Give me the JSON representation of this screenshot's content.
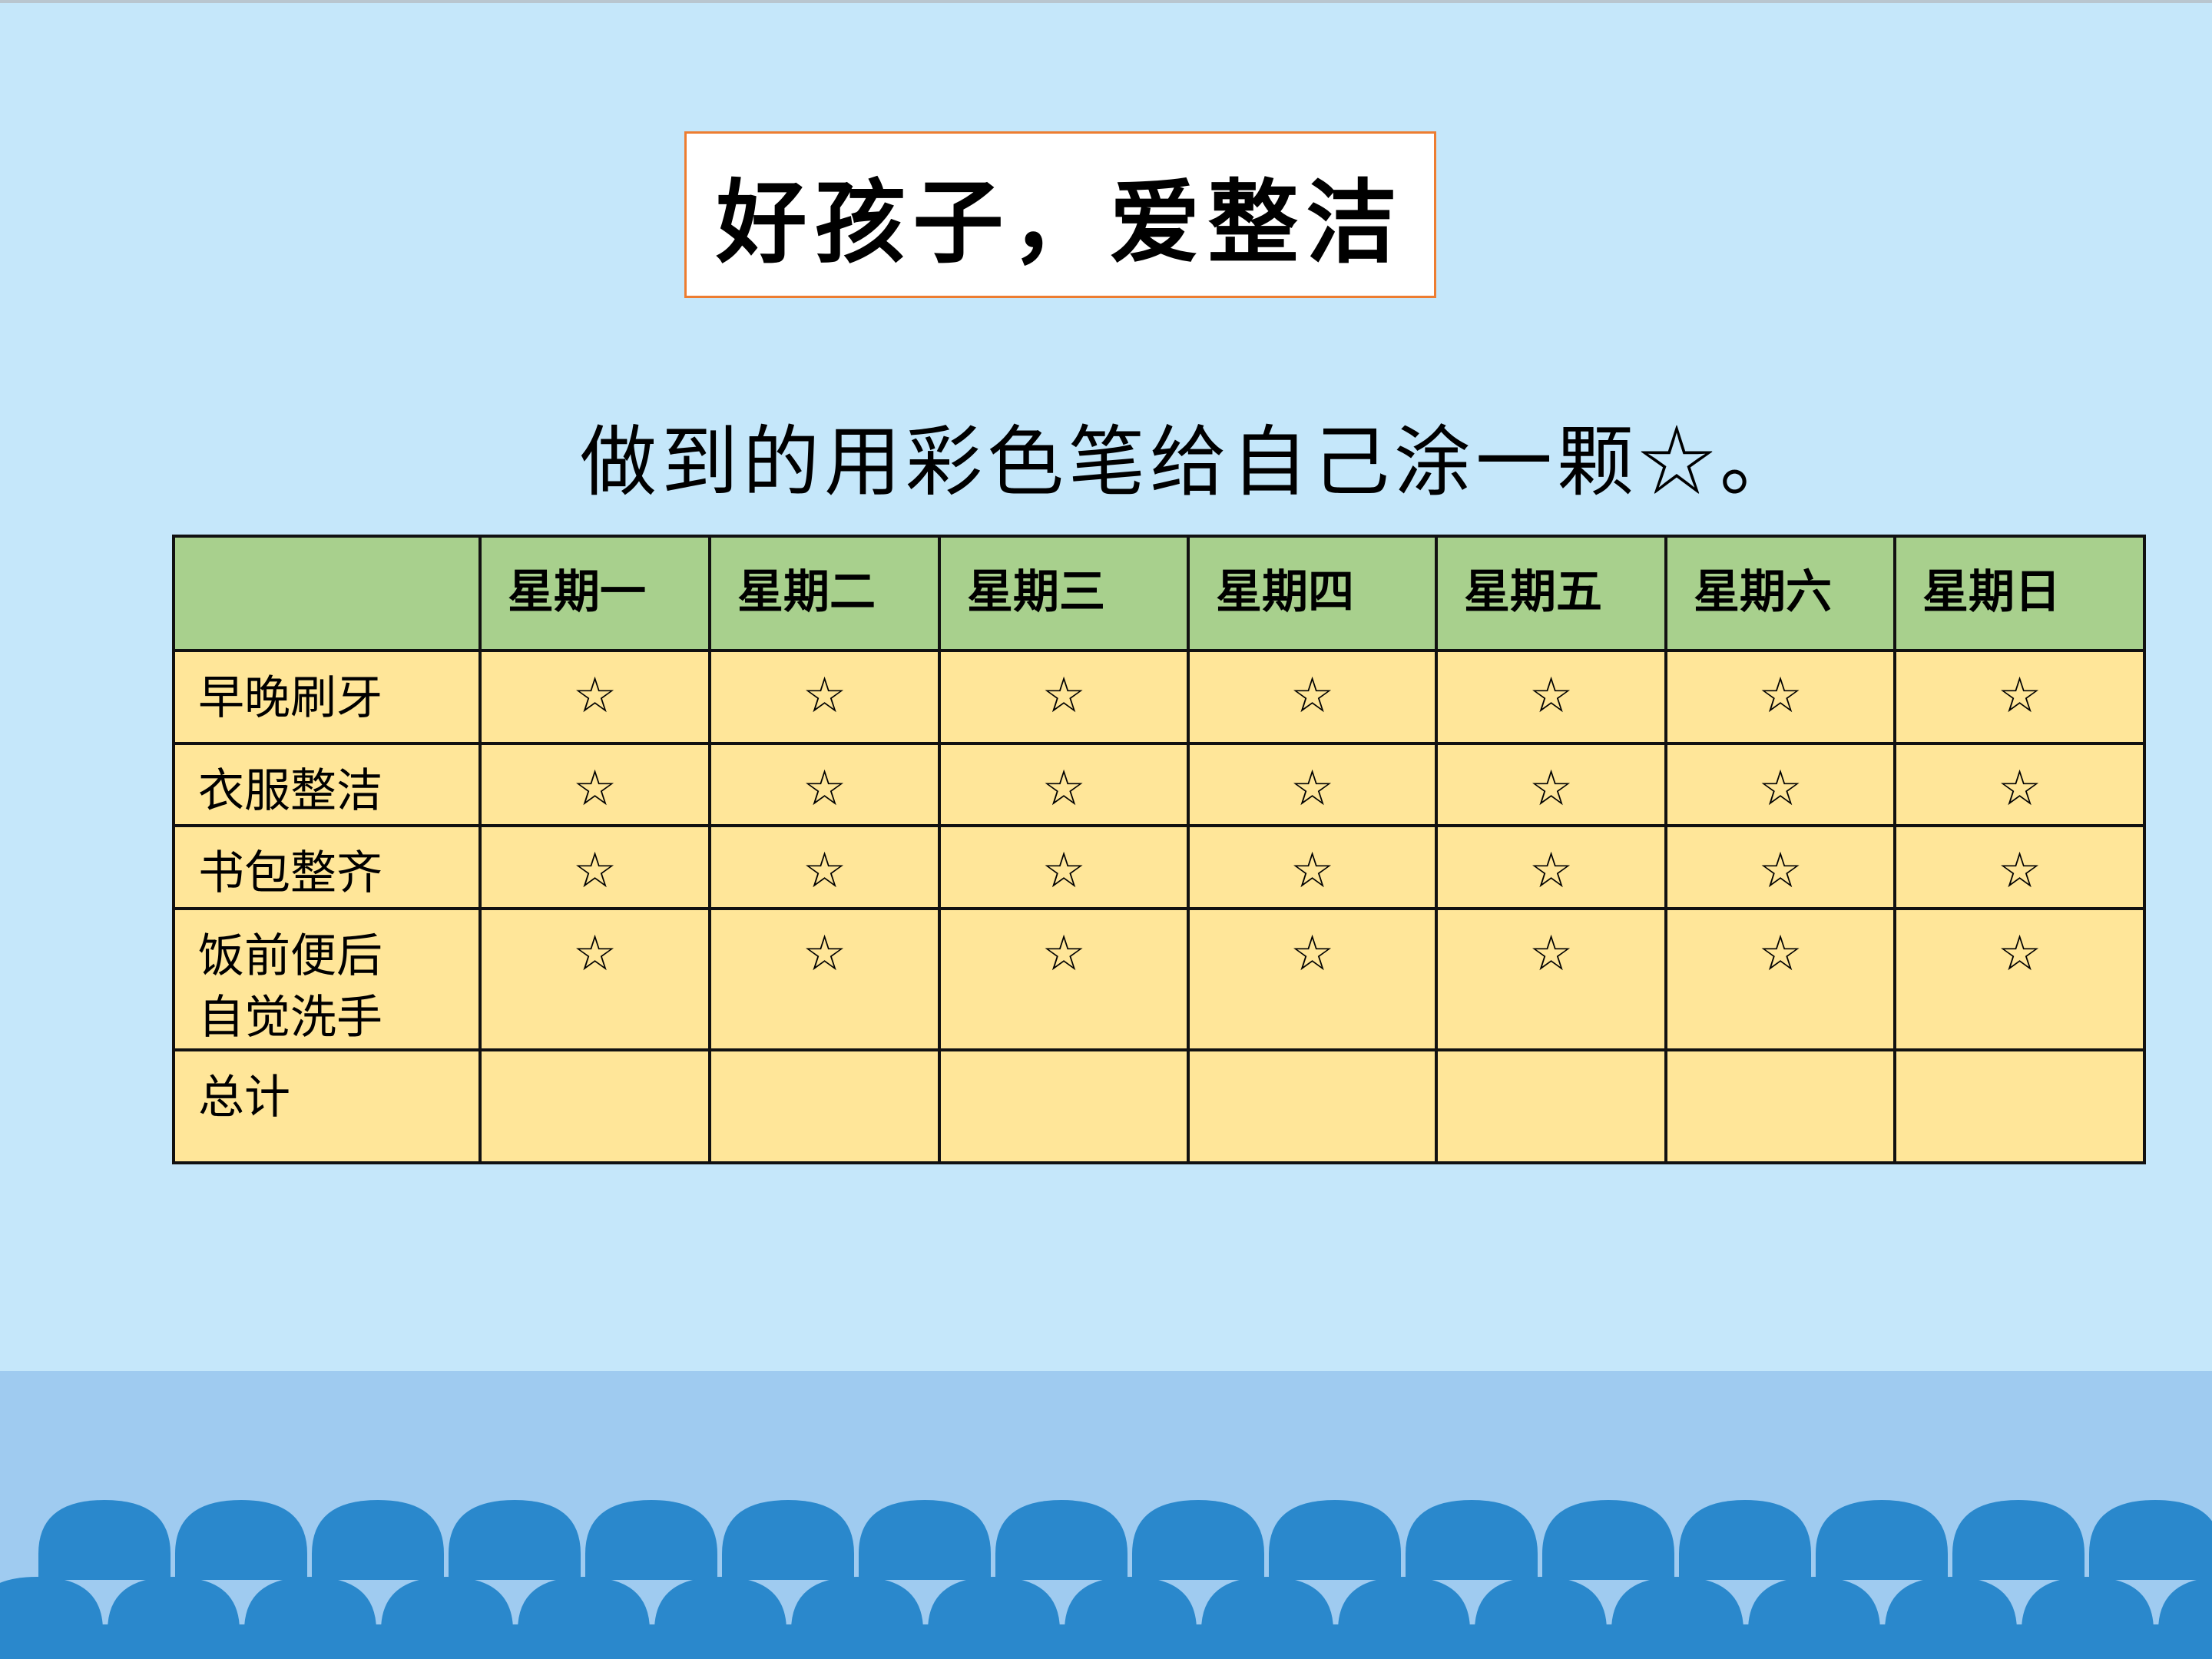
{
  "title": "好孩子，爱整洁",
  "instruction": "做到的用彩色笔给自己涂一颗☆。",
  "table": {
    "corner": "",
    "days": [
      "星期一",
      "星期二",
      "星期三",
      "星期四",
      "星期五",
      "星期六",
      "星期日"
    ],
    "rows": [
      {
        "label": "早晚刷牙",
        "cells": [
          "☆",
          "☆",
          "☆",
          "☆",
          "☆",
          "☆",
          "☆"
        ]
      },
      {
        "label": "衣服整洁",
        "cells": [
          "☆",
          "☆",
          "☆",
          "☆",
          "☆",
          "☆",
          "☆"
        ]
      },
      {
        "label": "书包整齐",
        "cells": [
          "☆",
          "☆",
          "☆",
          "☆",
          "☆",
          "☆",
          "☆"
        ]
      },
      {
        "label": "饭前便后\n自觉洗手",
        "cells": [
          "☆",
          "☆",
          "☆",
          "☆",
          "☆",
          "☆",
          "☆"
        ]
      },
      {
        "label": "总计",
        "cells": [
          "",
          "",
          "",
          "",
          "",
          "",
          ""
        ]
      }
    ]
  },
  "colors": {
    "background": "#c5e7fa",
    "band": "#9fcbf0",
    "waves": "#2a88cc",
    "header": "#a8d08d",
    "cells": "#ffe699",
    "title_border": "#ed7d31"
  }
}
